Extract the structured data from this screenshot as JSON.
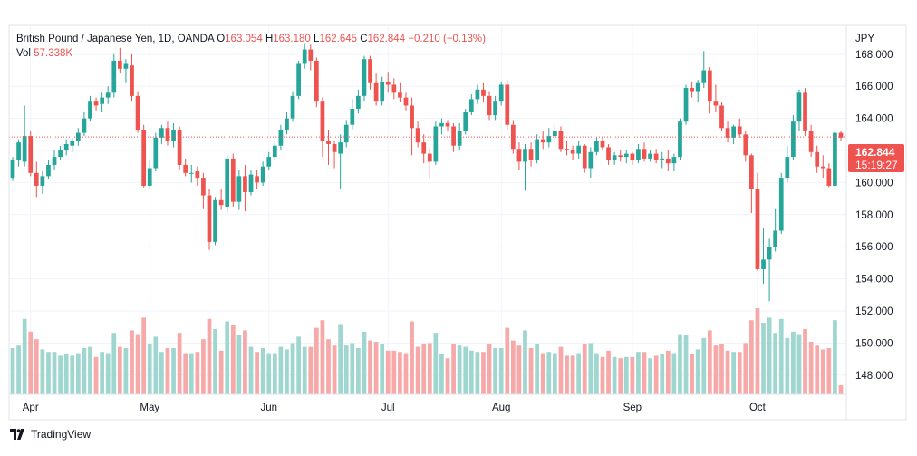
{
  "legend": {
    "title": "British Pound / Japanese Yen, 1D, OANDA",
    "o_label": "O",
    "o_value": "163.054",
    "h_label": "H",
    "h_value": "163.180",
    "l_label": "L",
    "l_value": "162.645",
    "c_label": "C",
    "c_value": "162.844",
    "change": "−0.210 (−0.13%)",
    "vol_label": "Vol",
    "vol_value": "57.338K"
  },
  "currency_label": "JPY",
  "price_badge": {
    "price": "162.844",
    "countdown": "15:19:27"
  },
  "brand": "TradingView",
  "colors": {
    "up": "#26a69a",
    "down": "#ef5350",
    "up_vol": "#9fd6cf",
    "down_vol": "#f6a9a8",
    "grid": "#f0f3fa",
    "axis_text": "#131722"
  },
  "chart_data": {
    "type": "candlestick",
    "y_axis": {
      "min": 146.8,
      "max": 169.8,
      "ticks": [
        "148.000",
        "150.000",
        "152.000",
        "154.000",
        "156.000",
        "158.000",
        "160.000",
        "162.000",
        "164.000",
        "166.000",
        "168.000"
      ]
    },
    "x_axis": {
      "labels": [
        {
          "label": "Apr",
          "index": 3
        },
        {
          "label": "May",
          "index": 23
        },
        {
          "label": "Jun",
          "index": 43
        },
        {
          "label": "Jul",
          "index": 63
        },
        {
          "label": "Aug",
          "index": 82
        },
        {
          "label": "Sep",
          "index": 104
        },
        {
          "label": "Oct",
          "index": 125
        }
      ]
    },
    "current_price": 162.844,
    "ohlc": [
      [
        160.3,
        161.6,
        160.1,
        161.4
      ],
      [
        161.4,
        162.7,
        161.0,
        162.5
      ],
      [
        161.3,
        164.8,
        161.0,
        162.9
      ],
      [
        162.9,
        163.2,
        160.4,
        160.6
      ],
      [
        160.6,
        161.3,
        159.1,
        159.8
      ],
      [
        159.8,
        160.7,
        159.3,
        160.4
      ],
      [
        160.4,
        161.4,
        160.2,
        161.1
      ],
      [
        161.1,
        162.0,
        160.8,
        161.6
      ],
      [
        161.6,
        162.3,
        161.4,
        162.0
      ],
      [
        162.0,
        162.7,
        161.7,
        162.4
      ],
      [
        162.3,
        162.8,
        161.9,
        162.6
      ],
      [
        162.6,
        163.4,
        162.3,
        163.1
      ],
      [
        163.1,
        164.4,
        162.9,
        164.0
      ],
      [
        164.0,
        165.4,
        163.8,
        165.1
      ],
      [
        165.1,
        165.3,
        164.5,
        164.8
      ],
      [
        164.9,
        165.6,
        164.4,
        165.3
      ],
      [
        165.3,
        166.0,
        164.9,
        165.6
      ],
      [
        165.6,
        168.0,
        165.3,
        167.6
      ],
      [
        167.6,
        168.4,
        166.8,
        167.1
      ],
      [
        167.1,
        167.7,
        166.2,
        167.4
      ],
      [
        167.3,
        168.0,
        165.1,
        165.4
      ],
      [
        165.4,
        165.7,
        163.1,
        163.3
      ],
      [
        163.3,
        163.6,
        159.7,
        159.8
      ],
      [
        159.8,
        161.4,
        159.6,
        160.9
      ],
      [
        160.9,
        163.1,
        160.7,
        162.8
      ],
      [
        162.8,
        163.6,
        162.4,
        163.4
      ],
      [
        163.4,
        163.8,
        162.3,
        162.6
      ],
      [
        162.6,
        163.7,
        162.2,
        163.3
      ],
      [
        163.3,
        163.5,
        160.8,
        161.1
      ],
      [
        161.1,
        161.5,
        160.4,
        160.6
      ],
      [
        160.6,
        161.1,
        160.0,
        160.6
      ],
      [
        160.7,
        161.0,
        159.8,
        160.3
      ],
      [
        160.3,
        160.6,
        158.4,
        159.2
      ],
      [
        159.2,
        159.6,
        155.8,
        156.3
      ],
      [
        156.3,
        159.1,
        156.1,
        158.9
      ],
      [
        158.9,
        159.6,
        158.3,
        158.6
      ],
      [
        158.5,
        161.7,
        158.1,
        161.5
      ],
      [
        161.5,
        161.8,
        158.5,
        158.8
      ],
      [
        158.8,
        160.8,
        158.3,
        160.4
      ],
      [
        160.4,
        161.1,
        158.2,
        159.4
      ],
      [
        159.4,
        160.8,
        159.2,
        160.5
      ],
      [
        160.4,
        160.8,
        159.6,
        160.0
      ],
      [
        160.0,
        161.3,
        159.8,
        161.0
      ],
      [
        161.0,
        161.9,
        160.8,
        161.6
      ],
      [
        161.6,
        162.5,
        161.4,
        162.3
      ],
      [
        162.3,
        163.6,
        162.0,
        163.3
      ],
      [
        163.3,
        164.4,
        163.0,
        164.0
      ],
      [
        164.0,
        165.7,
        163.8,
        165.4
      ],
      [
        165.4,
        167.6,
        165.2,
        167.4
      ],
      [
        167.4,
        168.7,
        167.1,
        168.3
      ],
      [
        168.3,
        168.6,
        167.0,
        167.6
      ],
      [
        167.6,
        167.8,
        164.7,
        165.1
      ],
      [
        165.1,
        165.3,
        161.6,
        162.6
      ],
      [
        162.6,
        163.3,
        161.1,
        162.4
      ],
      [
        162.4,
        162.6,
        160.9,
        161.9
      ],
      [
        161.8,
        163.0,
        159.6,
        162.5
      ],
      [
        162.5,
        163.9,
        162.2,
        163.6
      ],
      [
        163.6,
        165.2,
        163.3,
        164.6
      ],
      [
        164.6,
        165.8,
        164.3,
        165.4
      ],
      [
        165.4,
        167.9,
        165.1,
        167.7
      ],
      [
        167.7,
        167.9,
        165.8,
        166.2
      ],
      [
        166.2,
        166.8,
        164.8,
        165.1
      ],
      [
        165.1,
        166.6,
        164.8,
        166.3
      ],
      [
        166.3,
        166.9,
        165.6,
        166.1
      ],
      [
        166.1,
        166.5,
        165.2,
        165.6
      ],
      [
        165.6,
        166.2,
        165.0,
        165.3
      ],
      [
        165.3,
        165.6,
        164.5,
        164.8
      ],
      [
        164.8,
        165.3,
        161.7,
        163.4
      ],
      [
        163.4,
        163.8,
        162.2,
        162.5
      ],
      [
        162.5,
        163.0,
        161.2,
        161.8
      ],
      [
        161.8,
        162.2,
        160.3,
        161.3
      ],
      [
        161.3,
        163.8,
        161.1,
        163.5
      ],
      [
        163.5,
        164.0,
        163.0,
        163.7
      ],
      [
        163.7,
        163.9,
        163.2,
        163.5
      ],
      [
        163.5,
        163.7,
        161.9,
        162.3
      ],
      [
        162.3,
        163.7,
        162.0,
        163.2
      ],
      [
        163.2,
        164.6,
        163.0,
        164.4
      ],
      [
        164.4,
        165.5,
        164.2,
        165.2
      ],
      [
        165.2,
        166.1,
        164.9,
        165.8
      ],
      [
        165.8,
        166.2,
        165.0,
        165.4
      ],
      [
        165.4,
        165.7,
        163.9,
        164.2
      ],
      [
        164.2,
        165.4,
        163.9,
        165.1
      ],
      [
        165.1,
        166.3,
        164.8,
        166.1
      ],
      [
        166.1,
        166.4,
        163.3,
        163.6
      ],
      [
        163.6,
        163.9,
        161.8,
        162.1
      ],
      [
        162.1,
        162.5,
        160.8,
        161.3
      ],
      [
        161.3,
        162.4,
        159.5,
        162.1
      ],
      [
        162.1,
        162.5,
        161.0,
        161.4
      ],
      [
        161.4,
        163.0,
        161.2,
        162.7
      ],
      [
        162.7,
        163.2,
        162.1,
        162.5
      ],
      [
        162.5,
        163.4,
        162.2,
        162.9
      ],
      [
        162.9,
        163.6,
        162.5,
        163.2
      ],
      [
        163.2,
        163.5,
        161.9,
        162.1
      ],
      [
        162.1,
        162.6,
        161.7,
        162.0
      ],
      [
        162.0,
        162.3,
        161.4,
        161.8
      ],
      [
        161.8,
        162.6,
        161.5,
        162.3
      ],
      [
        162.3,
        162.4,
        160.6,
        160.9
      ],
      [
        160.9,
        162.2,
        160.3,
        161.9
      ],
      [
        161.9,
        162.8,
        161.7,
        162.6
      ],
      [
        162.6,
        162.8,
        162.0,
        162.2
      ],
      [
        162.2,
        162.4,
        161.1,
        161.4
      ],
      [
        161.4,
        161.9,
        161.1,
        161.7
      ],
      [
        161.7,
        162.0,
        161.3,
        161.6
      ],
      [
        161.6,
        162.0,
        161.2,
        161.8
      ],
      [
        161.8,
        161.9,
        161.1,
        161.4
      ],
      [
        161.4,
        162.4,
        161.2,
        162.1
      ],
      [
        162.1,
        162.5,
        161.3,
        161.5
      ],
      [
        161.5,
        162.0,
        161.3,
        161.8
      ],
      [
        161.8,
        162.1,
        161.2,
        161.4
      ],
      [
        161.4,
        161.9,
        160.9,
        161.5
      ],
      [
        161.5,
        162.0,
        160.7,
        161.2
      ],
      [
        161.2,
        161.8,
        160.7,
        161.6
      ],
      [
        161.6,
        164.0,
        161.4,
        163.8
      ],
      [
        163.8,
        166.1,
        163.6,
        165.9
      ],
      [
        165.9,
        166.3,
        165.3,
        165.7
      ],
      [
        165.7,
        166.4,
        165.0,
        166.2
      ],
      [
        166.2,
        168.2,
        165.9,
        167.0
      ],
      [
        167.0,
        167.2,
        164.3,
        165.1
      ],
      [
        165.1,
        166.1,
        164.4,
        164.8
      ],
      [
        164.8,
        165.0,
        163.2,
        163.4
      ],
      [
        163.4,
        163.8,
        162.5,
        162.8
      ],
      [
        162.8,
        163.6,
        162.4,
        163.5
      ],
      [
        163.5,
        164.0,
        162.8,
        163.0
      ],
      [
        163.0,
        163.2,
        161.3,
        161.7
      ],
      [
        161.7,
        161.8,
        158.1,
        159.6
      ],
      [
        159.6,
        160.6,
        154.5,
        154.6
      ],
      [
        154.6,
        157.2,
        153.7,
        155.2
      ],
      [
        155.2,
        156.5,
        152.6,
        156.0
      ],
      [
        156.0,
        158.4,
        155.7,
        157.0
      ],
      [
        157.0,
        160.6,
        156.8,
        160.3
      ],
      [
        160.3,
        162.3,
        160.0,
        161.6
      ],
      [
        161.6,
        164.2,
        161.4,
        163.8
      ],
      [
        163.8,
        165.8,
        163.2,
        165.6
      ],
      [
        165.6,
        165.9,
        162.9,
        163.2
      ],
      [
        163.2,
        163.6,
        161.6,
        161.9
      ],
      [
        161.9,
        162.3,
        160.6,
        161.0
      ],
      [
        161.0,
        161.7,
        160.3,
        160.9
      ],
      [
        160.9,
        161.2,
        159.7,
        159.8
      ],
      [
        159.8,
        163.3,
        159.6,
        163.1
      ],
      [
        163.1,
        163.2,
        162.6,
        162.8
      ]
    ],
    "volume_direction_note_only": ""
  }
}
